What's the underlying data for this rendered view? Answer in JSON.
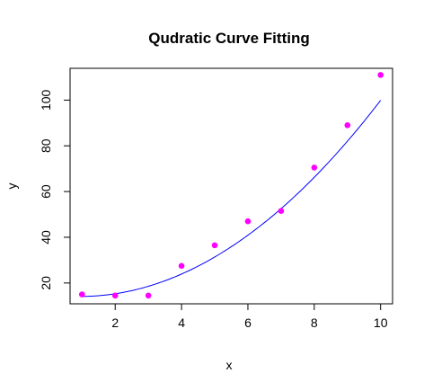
{
  "chart_data": {
    "type": "scatter",
    "title": "Qudratic Curve Fitting",
    "xlabel": "x",
    "ylabel": "y",
    "xlim": [
      0.64,
      10.36
    ],
    "ylim": [
      10.9,
      113.9
    ],
    "x_ticks": [
      2,
      4,
      6,
      8,
      10
    ],
    "y_ticks": [
      20,
      40,
      60,
      80,
      100
    ],
    "grid": false,
    "series": [
      {
        "kind": "points",
        "color": "#ff00ff",
        "x": [
          1,
          2,
          3,
          4,
          5,
          6,
          7,
          8,
          9,
          10
        ],
        "y": [
          15,
          14.5,
          14.5,
          27.5,
          36.5,
          47,
          51.5,
          70.5,
          89,
          111
        ]
      },
      {
        "kind": "fitted-curve",
        "color": "#0000ff",
        "coefficients": {
          "a": 1.0436,
          "b": -1.9466,
          "c": 15.01
        },
        "x_range": [
          1,
          10
        ]
      }
    ]
  }
}
